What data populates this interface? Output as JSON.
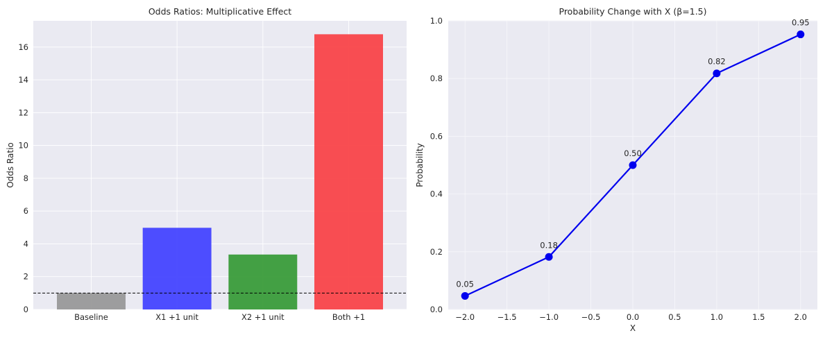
{
  "chart_data": [
    {
      "type": "bar",
      "title": "Odds Ratios: Multiplicative Effect",
      "xlabel": "",
      "ylabel": "Odds Ratio",
      "categories": [
        "Baseline",
        "X1 +1 unit",
        "X2 +1 unit",
        "Both +1"
      ],
      "values": [
        1.0,
        4.98,
        3.35,
        16.78
      ],
      "bar_colors": [
        "#999999",
        "#4444ff",
        "#3a9c3a",
        "#f94449"
      ],
      "reference_line": {
        "y": 1.0,
        "style": "dashed",
        "color": "#000000"
      },
      "ylim": [
        0,
        17.6
      ],
      "yticks": [
        0,
        2,
        4,
        6,
        8,
        10,
        12,
        14,
        16
      ],
      "ytick_labels": [
        "0",
        "2",
        "4",
        "6",
        "8",
        "10",
        "12",
        "14",
        "16"
      ],
      "grid": true,
      "background": "#eaeaf2"
    },
    {
      "type": "line",
      "title": "Probability Change with X (β=1.5)",
      "xlabel": "X",
      "ylabel": "Probability",
      "x": [
        -2.0,
        -1.0,
        0.0,
        1.0,
        2.0
      ],
      "y": [
        0.047,
        0.182,
        0.5,
        0.818,
        0.953
      ],
      "point_labels": [
        "0.05",
        "0.18",
        "0.50",
        "0.82",
        "0.95"
      ],
      "color": "#0000ee",
      "marker": "circle",
      "xlim": [
        -2.2,
        2.2
      ],
      "ylim": [
        0,
        1.0
      ],
      "xticks": [
        -2.0,
        -1.5,
        -1.0,
        -0.5,
        0.0,
        0.5,
        1.0,
        1.5,
        2.0
      ],
      "xtick_labels": [
        "−2.0",
        "−1.5",
        "−1.0",
        "−0.5",
        "0.0",
        "0.5",
        "1.0",
        "1.5",
        "2.0"
      ],
      "yticks": [
        0.0,
        0.2,
        0.4,
        0.6,
        0.8,
        1.0
      ],
      "ytick_labels": [
        "0.0",
        "0.2",
        "0.4",
        "0.6",
        "0.8",
        "1.0"
      ],
      "grid": true,
      "background": "#eaeaf2"
    }
  ]
}
